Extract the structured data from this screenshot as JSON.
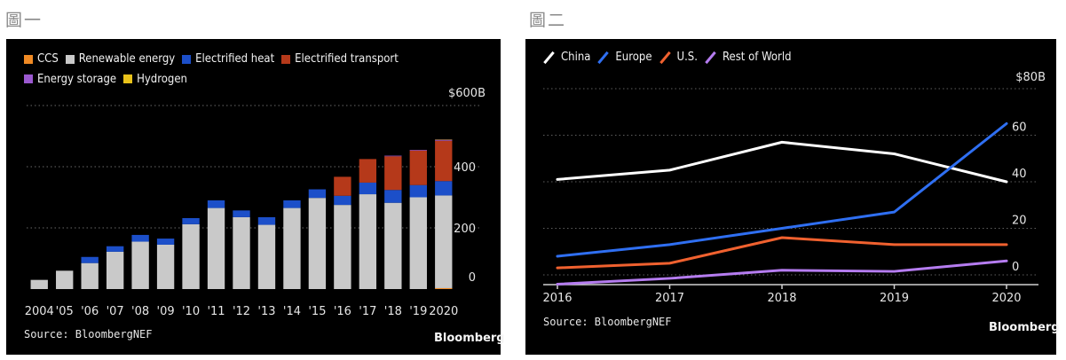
{
  "figure_labels": {
    "left": "圖一",
    "right": "圖二"
  },
  "chart_data": [
    {
      "type": "bar",
      "stacked": true,
      "title": "",
      "unit_label": "$600B",
      "categories": [
        "2004",
        "'05",
        "'06",
        "'07",
        "'08",
        "'09",
        "'10",
        "'11",
        "'12",
        "'13",
        "'14",
        "'15",
        "'16",
        "'17",
        "'18",
        "'19",
        "2020"
      ],
      "ylim": [
        0,
        600
      ],
      "yticks": [
        0,
        200,
        400
      ],
      "gridlines": [
        200,
        400,
        600
      ],
      "series": [
        {
          "name": "CCS",
          "color": "#f08a24",
          "values": [
            0,
            0,
            0,
            0,
            0,
            0,
            0,
            0,
            0,
            0,
            0,
            0,
            0,
            0,
            0,
            0,
            3
          ]
        },
        {
          "name": "Renewable energy",
          "color": "#c9c9c9",
          "values": [
            30,
            60,
            85,
            122,
            155,
            145,
            212,
            265,
            235,
            210,
            265,
            298,
            275,
            310,
            282,
            300,
            303
          ]
        },
        {
          "name": "Electrified heat",
          "color": "#1c4fc9",
          "values": [
            0,
            0,
            20,
            18,
            22,
            20,
            20,
            25,
            22,
            25,
            25,
            28,
            30,
            38,
            42,
            40,
            47
          ]
        },
        {
          "name": "Electrified transport",
          "color": "#b5391a",
          "values": [
            0,
            0,
            0,
            0,
            0,
            0,
            0,
            0,
            0,
            0,
            0,
            0,
            62,
            77,
            110,
            113,
            132
          ]
        },
        {
          "name": "Energy storage",
          "color": "#9b59d0",
          "values": [
            0,
            0,
            0,
            0,
            0,
            0,
            0,
            0,
            0,
            0,
            0,
            0,
            0,
            0,
            2,
            2,
            3
          ]
        },
        {
          "name": "Hydrogen",
          "color": "#e9c21a",
          "values": [
            0,
            0,
            0,
            0,
            0,
            0,
            0,
            0,
            0,
            0,
            0,
            0,
            0,
            0,
            0,
            0,
            1
          ]
        }
      ],
      "source": "Source: BloombergNEF",
      "brand": "Bloomberg"
    },
    {
      "type": "line",
      "title": "",
      "unit_label": "$80B",
      "x": [
        "2016",
        "2017",
        "2018",
        "2019",
        "2020"
      ],
      "ylim": [
        0,
        80
      ],
      "yticks": [
        0,
        20,
        40,
        60
      ],
      "gridlines": [
        0,
        20,
        40,
        60,
        80
      ],
      "series": [
        {
          "name": "China",
          "color": "#ffffff",
          "values": [
            41,
            45,
            57,
            52,
            40
          ]
        },
        {
          "name": "Europe",
          "color": "#2f6ff2",
          "values": [
            8,
            13,
            20,
            27,
            65
          ]
        },
        {
          "name": "U.S.",
          "color": "#f0612f",
          "values": [
            3,
            5,
            16,
            13,
            13
          ]
        },
        {
          "name": "Rest of World",
          "color": "#b57cf0",
          "values": [
            -4,
            -1.5,
            2,
            1.5,
            6
          ]
        }
      ],
      "source": "Source: BloombergNEF",
      "brand": "Bloomberg"
    }
  ]
}
